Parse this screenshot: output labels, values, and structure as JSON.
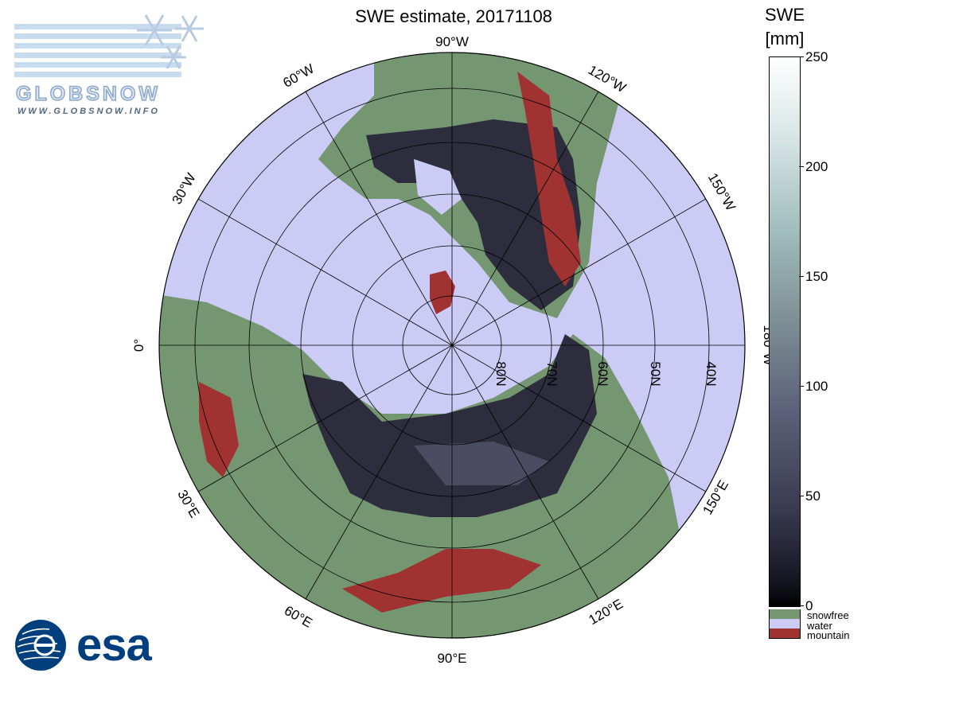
{
  "title": "SWE estimate, 20171108",
  "colorbar": {
    "title_line1": "SWE",
    "title_line2": "[mm]",
    "ticks": [
      250,
      200,
      150,
      100,
      50,
      0
    ],
    "range": [
      0,
      250
    ],
    "categories": [
      {
        "label": "snowfree",
        "color": "#749670"
      },
      {
        "label": "water",
        "color": "#cbcbf5"
      },
      {
        "label": "mountain",
        "color": "#a03232"
      }
    ]
  },
  "map": {
    "projection": "polar stereographic, north pole",
    "meridian_labels": [
      "90°W",
      "120°W",
      "150°W",
      "180°W",
      "150°E",
      "120°E",
      "90°E",
      "60°E",
      "30°E",
      "0°",
      "30°W",
      "60°W"
    ],
    "parallel_labels": [
      "80N",
      "70N",
      "60N",
      "50N",
      "40N"
    ],
    "colors": {
      "ocean": "#cbcbf5",
      "snowfree": "#749670",
      "mountain": "#a03232",
      "swe_low": "#141420",
      "swe_mid": "#505066"
    }
  },
  "logos": {
    "globsnow_word": "GLOBSNOW",
    "globsnow_url": "WWW.GLOBSNOW.INFO",
    "esa_word": "esa"
  }
}
